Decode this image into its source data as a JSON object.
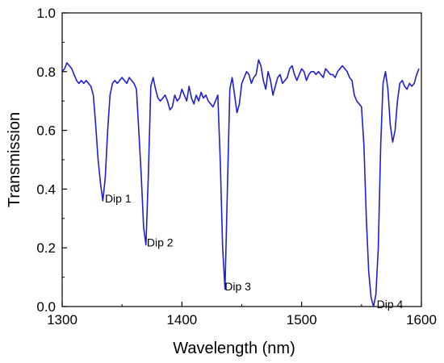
{
  "chart_data": {
    "type": "line",
    "title": "",
    "xlabel": "Wavelength (nm)",
    "ylabel": "Transmission",
    "xlim": [
      1300,
      1600
    ],
    "ylim": [
      0.0,
      1.0
    ],
    "xticks": [
      1300,
      1400,
      1500,
      1600
    ],
    "xtick_labels": [
      "1300",
      "1400",
      "1500",
      "1600"
    ],
    "yticks": [
      0.0,
      0.2,
      0.4,
      0.6,
      0.8,
      1.0
    ],
    "ytick_labels": [
      "0.0",
      "0.2",
      "0.4",
      "0.6",
      "0.8",
      "1.0"
    ],
    "grid": false,
    "series": [
      {
        "color": "#1f1fd2",
        "x": [
          1300,
          1302,
          1304,
          1306,
          1308,
          1310,
          1312,
          1314,
          1316,
          1318,
          1320,
          1322,
          1324,
          1326,
          1328,
          1330,
          1332,
          1334,
          1336,
          1338,
          1340,
          1342,
          1344,
          1346,
          1348,
          1350,
          1352,
          1354,
          1356,
          1358,
          1360,
          1362,
          1364,
          1366,
          1368,
          1370,
          1372,
          1374,
          1376,
          1378,
          1380,
          1382,
          1384,
          1386,
          1388,
          1390,
          1392,
          1394,
          1396,
          1398,
          1400,
          1402,
          1404,
          1406,
          1408,
          1410,
          1412,
          1414,
          1416,
          1418,
          1420,
          1422,
          1424,
          1426,
          1428,
          1430,
          1432,
          1434,
          1436,
          1438,
          1440,
          1442,
          1444,
          1446,
          1448,
          1450,
          1452,
          1454,
          1456,
          1458,
          1460,
          1462,
          1464,
          1466,
          1468,
          1470,
          1472,
          1474,
          1476,
          1478,
          1480,
          1482,
          1484,
          1486,
          1488,
          1490,
          1492,
          1494,
          1496,
          1498,
          1500,
          1502,
          1504,
          1506,
          1508,
          1510,
          1512,
          1514,
          1516,
          1518,
          1520,
          1522,
          1524,
          1526,
          1528,
          1530,
          1532,
          1534,
          1536,
          1538,
          1540,
          1542,
          1544,
          1546,
          1548,
          1550,
          1552,
          1554,
          1556,
          1558,
          1560,
          1562,
          1564,
          1566,
          1568,
          1570,
          1572,
          1574,
          1576,
          1578,
          1580,
          1582,
          1584,
          1586,
          1588,
          1590,
          1592,
          1594,
          1596,
          1598
        ],
        "y": [
          0.8,
          0.81,
          0.83,
          0.82,
          0.81,
          0.79,
          0.77,
          0.76,
          0.77,
          0.76,
          0.77,
          0.76,
          0.75,
          0.72,
          0.62,
          0.5,
          0.42,
          0.36,
          0.44,
          0.6,
          0.72,
          0.76,
          0.77,
          0.76,
          0.77,
          0.78,
          0.77,
          0.76,
          0.78,
          0.77,
          0.76,
          0.74,
          0.6,
          0.45,
          0.27,
          0.21,
          0.45,
          0.75,
          0.78,
          0.74,
          0.71,
          0.7,
          0.71,
          0.72,
          0.7,
          0.67,
          0.68,
          0.72,
          0.7,
          0.71,
          0.74,
          0.72,
          0.7,
          0.75,
          0.71,
          0.69,
          0.72,
          0.7,
          0.73,
          0.71,
          0.72,
          0.7,
          0.69,
          0.68,
          0.7,
          0.72,
          0.5,
          0.2,
          0.06,
          0.4,
          0.74,
          0.78,
          0.72,
          0.66,
          0.69,
          0.76,
          0.78,
          0.8,
          0.79,
          0.76,
          0.78,
          0.79,
          0.84,
          0.82,
          0.77,
          0.74,
          0.8,
          0.77,
          0.72,
          0.75,
          0.78,
          0.79,
          0.76,
          0.77,
          0.78,
          0.81,
          0.82,
          0.79,
          0.77,
          0.79,
          0.81,
          0.8,
          0.77,
          0.79,
          0.8,
          0.8,
          0.79,
          0.8,
          0.79,
          0.78,
          0.81,
          0.8,
          0.79,
          0.79,
          0.78,
          0.8,
          0.81,
          0.82,
          0.81,
          0.8,
          0.78,
          0.77,
          0.72,
          0.7,
          0.69,
          0.68,
          0.55,
          0.3,
          0.12,
          0.03,
          0.0,
          0.04,
          0.2,
          0.55,
          0.76,
          0.8,
          0.74,
          0.62,
          0.56,
          0.6,
          0.7,
          0.76,
          0.77,
          0.75,
          0.74,
          0.76,
          0.75,
          0.76,
          0.79,
          0.81
        ]
      }
    ],
    "annotations": [
      {
        "text": "Dip 1",
        "x": 1333,
        "y": 0.36
      },
      {
        "text": "Dip 2",
        "x": 1368,
        "y": 0.21
      },
      {
        "text": "Dip 3",
        "x": 1433,
        "y": 0.06
      },
      {
        "text": "Dip 4",
        "x": 1560,
        "y": 0.0
      }
    ]
  }
}
